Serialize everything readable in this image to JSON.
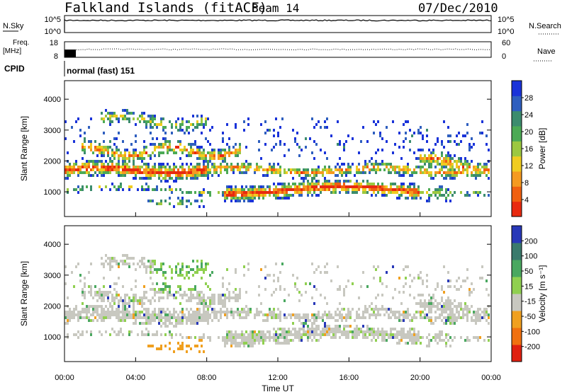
{
  "header": {
    "station": "Falkland Islands (fitACF)",
    "beam": "Beam 14",
    "date": "07/Dec/2010"
  },
  "status_panels": {
    "nsky_label": "N.Sky",
    "nsky_ticks": [
      "10^5",
      "10^0"
    ],
    "nsearch_label": "N.Search",
    "nsearch_ticks": [
      "10^5",
      "10^0"
    ],
    "freq_label_top": "Freq.",
    "freq_label_unit": "[MHz]",
    "freq_ticks": [
      "18",
      "8"
    ],
    "nave_label": "Nave",
    "nave_ticks": [
      "60",
      "0"
    ],
    "cpid_label": "CPID",
    "cpid_value": "normal (fast) 151"
  },
  "chart_data": [
    {
      "type": "heatmap",
      "name": "power",
      "ylabel": "Slant Range [km]",
      "y_ticks": [
        "4000",
        "3000",
        "2000",
        "1000"
      ],
      "ylim": [
        200,
        4600
      ],
      "xlim": [
        0,
        24
      ],
      "colorbar_label": "Power [dB]",
      "colorbar_ticks": [
        "28",
        "24",
        "20",
        "16",
        "12",
        "8",
        "4"
      ],
      "colorbar_range": [
        0,
        32
      ],
      "colors": [
        "#1a33d9",
        "#2f5fbf",
        "#3c8c6e",
        "#4caa55",
        "#9cc840",
        "#f0cc20",
        "#f59a20",
        "#f06010",
        "#e82a10"
      ]
    },
    {
      "type": "heatmap",
      "name": "velocity",
      "ylabel": "Slant Range [km]",
      "y_ticks": [
        "4000",
        "3000",
        "2000",
        "1000"
      ],
      "ylim": [
        200,
        4600
      ],
      "xlim": [
        0,
        24
      ],
      "colorbar_label": "Velocity [m s⁻¹]",
      "colorbar_ticks": [
        "200",
        "100",
        "50",
        "15",
        "-15",
        "-50",
        "-100",
        "-200"
      ],
      "colors": [
        "#2838b8",
        "#3a7a6c",
        "#4aa860",
        "#90d050",
        "#c8c8c0",
        "#f0a020",
        "#f07010",
        "#e02010"
      ]
    }
  ],
  "x_axis": {
    "ticks": [
      "00:00",
      "04:00",
      "08:00",
      "12:00",
      "16:00",
      "20:00",
      "00:00"
    ],
    "label": "Time UT"
  }
}
